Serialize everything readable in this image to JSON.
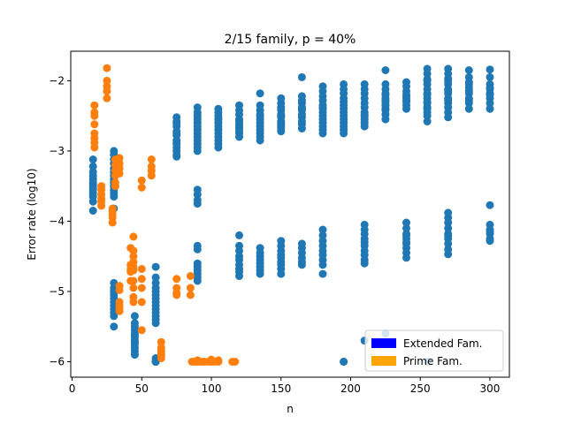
{
  "chart_data": {
    "type": "scatter",
    "title": "2/15 family, p = 40%",
    "xlabel": "n",
    "ylabel": "Error rate (log10)",
    "xlim": [
      -1,
      314
    ],
    "ylim": [
      -6.22,
      -1.58
    ],
    "xticks": [
      0,
      50,
      100,
      150,
      200,
      250,
      300
    ],
    "yticks": [
      -6,
      -5,
      -4,
      -3,
      -2
    ],
    "grid": false,
    "legend": {
      "placement": "lower-right",
      "entries": [
        {
          "label": "Extended Fam.",
          "color": "#0000ff"
        },
        {
          "label": "Prime Fam.",
          "color": "#ffa500"
        }
      ]
    },
    "series": [
      {
        "color": "#1f77b4",
        "x": [
          15,
          15,
          15,
          15,
          15,
          15,
          15,
          15,
          15,
          15,
          15,
          15,
          15,
          30,
          30,
          30,
          30,
          30,
          30,
          30,
          30,
          30,
          30,
          30,
          30,
          30,
          30,
          30,
          30,
          30,
          30,
          30,
          30,
          30,
          30,
          30,
          30,
          30,
          30,
          45,
          45,
          45,
          45,
          45,
          45,
          45,
          45,
          45,
          45,
          45,
          45,
          45,
          60,
          60,
          60,
          60,
          60,
          60,
          60,
          60,
          60,
          60,
          60,
          60,
          60,
          60,
          60,
          60,
          60,
          60,
          60,
          60,
          60,
          75,
          75,
          75,
          75,
          75,
          75,
          75,
          75,
          75,
          75,
          75,
          75,
          75,
          75,
          90,
          90,
          90,
          90,
          90,
          90,
          90,
          90,
          90,
          90,
          90,
          90,
          90,
          90,
          90,
          90,
          90,
          90,
          90,
          90,
          90,
          90,
          90,
          90,
          90,
          105,
          105,
          105,
          105,
          105,
          105,
          105,
          105,
          105,
          105,
          105,
          105,
          105,
          120,
          120,
          120,
          120,
          120,
          120,
          120,
          120,
          120,
          120,
          120,
          120,
          120,
          120,
          120,
          120,
          120,
          120,
          120,
          120,
          135,
          135,
          135,
          135,
          135,
          135,
          135,
          135,
          135,
          135,
          135,
          135,
          135,
          135,
          135,
          135,
          135,
          135,
          135,
          135,
          150,
          150,
          150,
          150,
          150,
          150,
          150,
          150,
          150,
          150,
          150,
          150,
          150,
          150,
          150,
          150,
          150,
          150,
          150,
          150,
          150,
          150,
          165,
          165,
          165,
          165,
          165,
          165,
          165,
          165,
          165,
          165,
          165,
          165,
          165,
          165,
          165,
          165,
          165,
          165,
          180,
          180,
          180,
          180,
          180,
          180,
          180,
          180,
          180,
          180,
          180,
          180,
          180,
          180,
          180,
          180,
          180,
          180,
          180,
          180,
          180,
          180,
          180,
          195,
          195,
          195,
          195,
          195,
          195,
          195,
          195,
          195,
          195,
          195,
          195,
          195,
          195,
          195,
          210,
          210,
          210,
          210,
          210,
          210,
          210,
          210,
          210,
          210,
          210,
          210,
          210,
          210,
          210,
          210,
          210,
          210,
          210,
          210,
          210,
          210,
          225,
          225,
          225,
          225,
          225,
          225,
          225,
          225,
          225,
          225,
          225,
          225,
          225,
          225,
          240,
          240,
          240,
          240,
          240,
          240,
          240,
          240,
          240,
          240,
          240,
          240,
          240,
          240,
          240,
          240,
          240,
          240,
          240,
          240,
          255,
          255,
          255,
          255,
          255,
          255,
          255,
          255,
          255,
          255,
          255,
          255,
          255,
          255,
          255,
          255,
          255,
          255,
          270,
          270,
          270,
          270,
          270,
          270,
          270,
          270,
          270,
          270,
          270,
          270,
          270,
          270,
          270,
          270,
          270,
          270,
          270,
          270,
          270,
          270,
          270,
          270,
          285,
          285,
          285,
          285,
          285,
          285,
          285,
          285,
          285,
          285,
          285,
          300,
          300,
          300,
          300,
          300,
          300,
          300,
          300,
          300,
          300,
          300,
          300,
          300,
          300,
          300,
          300,
          300,
          210,
          225,
          195
        ],
        "y": [
          -3.12,
          -3.22,
          -3.3,
          -3.35,
          -3.4,
          -3.45,
          -3.48,
          -3.52,
          -3.55,
          -3.6,
          -3.65,
          -3.72,
          -3.85,
          -3.0,
          -3.05,
          -3.12,
          -3.18,
          -3.25,
          -3.3,
          -3.35,
          -3.4,
          -3.45,
          -3.5,
          -3.55,
          -3.6,
          -3.65,
          -3.82,
          -4.88,
          -4.95,
          -5.0,
          -5.05,
          -5.1,
          -5.15,
          -5.2,
          -5.25,
          -5.3,
          -5.35,
          -5.5,
          -5.0,
          -5.35,
          -5.45,
          -5.5,
          -5.55,
          -5.6,
          -5.62,
          -5.65,
          -5.7,
          -5.72,
          -5.75,
          -5.8,
          -5.85,
          -5.9,
          -4.65,
          -4.8,
          -4.88,
          -4.95,
          -5.0,
          -5.05,
          -5.1,
          -5.15,
          -5.2,
          -5.25,
          -5.3,
          -5.35,
          -5.4,
          -5.45,
          -5.95,
          -5.98,
          -6.0,
          -6.0,
          -6.0,
          -6.0,
          -6.0,
          -2.52,
          -2.58,
          -2.65,
          -2.72,
          -2.78,
          -2.85,
          -2.9,
          -2.95,
          -3.0,
          -3.05,
          -3.08,
          -2.6,
          -2.75,
          -2.88,
          -2.38,
          -2.45,
          -2.5,
          -2.55,
          -2.6,
          -2.65,
          -2.7,
          -2.75,
          -2.8,
          -2.85,
          -2.9,
          -2.95,
          -3.0,
          -3.55,
          -3.62,
          -3.7,
          -3.75,
          -4.35,
          -4.4,
          -4.6,
          -4.65,
          -4.7,
          -4.75,
          -4.8,
          -4.85,
          -2.4,
          -2.45,
          -2.5,
          -2.55,
          -2.6,
          -2.65,
          -2.7,
          -2.75,
          -2.8,
          -2.85,
          -2.9,
          -2.95,
          -2.55,
          -2.35,
          -2.42,
          -2.48,
          -2.55,
          -2.62,
          -2.68,
          -2.75,
          -2.8,
          -2.58,
          -2.65,
          -2.72,
          -4.2,
          -4.35,
          -4.42,
          -4.5,
          -4.55,
          -4.62,
          -4.68,
          -4.72,
          -4.78,
          -2.18,
          -2.35,
          -2.42,
          -2.48,
          -2.55,
          -2.6,
          -2.65,
          -2.7,
          -2.75,
          -2.8,
          -2.85,
          -2.5,
          -4.38,
          -4.45,
          -4.5,
          -4.55,
          -4.6,
          -4.65,
          -4.7,
          -4.75,
          -2.25,
          -2.32,
          -2.38,
          -2.42,
          -2.48,
          -2.52,
          -2.58,
          -2.62,
          -2.68,
          -2.72,
          -2.5,
          -2.6,
          -2.65,
          -4.28,
          -4.35,
          -4.42,
          -4.48,
          -4.52,
          -4.58,
          -4.62,
          -4.68,
          -4.75,
          -1.95,
          -2.22,
          -2.28,
          -2.32,
          -2.38,
          -2.42,
          -2.48,
          -2.52,
          -2.58,
          -2.62,
          -2.68,
          -2.4,
          -4.32,
          -4.38,
          -4.45,
          -4.52,
          -4.58,
          -4.62,
          -2.08,
          -2.15,
          -2.22,
          -2.28,
          -2.35,
          -2.4,
          -2.45,
          -2.5,
          -2.55,
          -2.6,
          -2.65,
          -2.7,
          -2.75,
          -2.38,
          -4.12,
          -4.2,
          -4.28,
          -4.35,
          -4.42,
          -4.48,
          -4.55,
          -4.62,
          -4.75,
          -2.05,
          -2.12,
          -2.18,
          -2.25,
          -2.3,
          -2.35,
          -2.4,
          -2.45,
          -2.5,
          -2.55,
          -2.6,
          -2.65,
          -2.7,
          -2.75,
          -6.0,
          -2.05,
          -2.12,
          -2.18,
          -2.25,
          -2.32,
          -2.38,
          -2.45,
          -2.5,
          -2.55,
          -2.6,
          -2.65,
          -2.48,
          -4.05,
          -4.12,
          -4.18,
          -4.25,
          -4.3,
          -4.35,
          -4.42,
          -4.48,
          -4.55,
          -4.6,
          -1.85,
          -2.05,
          -2.12,
          -2.18,
          -2.25,
          -2.3,
          -2.35,
          -2.42,
          -2.48,
          -2.55,
          -2.2,
          -2.28,
          -2.4,
          -2.35,
          -2.02,
          -2.08,
          -2.15,
          -2.2,
          -2.25,
          -2.3,
          -2.35,
          -2.4,
          -2.22,
          -2.28,
          -4.02,
          -4.1,
          -4.18,
          -4.25,
          -4.32,
          -4.38,
          -4.45,
          -4.52,
          -4.3,
          -4.2,
          -1.83,
          -1.9,
          -1.98,
          -2.05,
          -2.12,
          -2.18,
          -2.25,
          -2.32,
          -2.38,
          -2.45,
          -2.5,
          -2.58,
          -2.2,
          -2.3,
          -2.4,
          -2.0,
          -6.0,
          -6.0,
          -1.83,
          -1.9,
          -1.97,
          -2.05,
          -2.12,
          -2.18,
          -2.25,
          -2.32,
          -2.38,
          -2.45,
          -2.52,
          -2.0,
          -2.15,
          -2.28,
          -3.88,
          -3.95,
          -4.02,
          -4.1,
          -4.18,
          -4.25,
          -4.32,
          -4.4,
          -4.47,
          -4.2,
          -1.85,
          -1.95,
          -2.02,
          -2.1,
          -2.18,
          -2.25,
          -2.32,
          -2.4,
          -2.15,
          -2.05,
          -2.28,
          -1.84,
          -1.95,
          -2.05,
          -2.12,
          -2.18,
          -2.25,
          -2.32,
          -2.4,
          -2.1,
          -2.2,
          -3.77,
          -4.05,
          -4.12,
          -4.18,
          -4.25,
          -4.28,
          -4.15,
          -5.7,
          -5.6,
          -6.0
        ]
      },
      {
        "color": "#ff7f0e",
        "x": [
          16,
          16,
          16,
          16,
          16,
          16,
          16,
          16,
          21,
          21,
          21,
          21,
          21,
          21,
          25,
          25,
          25,
          25,
          25,
          29,
          29,
          29,
          29,
          29,
          31,
          31,
          31,
          31,
          31,
          31,
          34,
          34,
          34,
          34,
          34,
          34,
          34,
          34,
          34,
          34,
          42,
          42,
          42,
          42,
          42,
          44,
          44,
          44,
          44,
          44,
          44,
          44,
          44,
          44,
          44,
          50,
          50,
          50,
          50,
          50,
          50,
          50,
          57,
          57,
          57,
          57,
          64,
          64,
          64,
          64,
          64,
          75,
          75,
          75,
          75,
          85,
          85,
          85,
          86,
          88,
          90,
          92,
          94,
          98,
          100,
          102,
          105,
          115,
          117,
          90,
          95,
          100,
          105
        ],
        "y": [
          -2.35,
          -2.45,
          -2.62,
          -2.75,
          -2.82,
          -2.88,
          -2.95,
          -2.5,
          -3.5,
          -3.55,
          -3.62,
          -3.68,
          -3.72,
          -3.78,
          -1.82,
          -2.08,
          -2.15,
          -2.25,
          -2.0,
          -3.82,
          -3.9,
          -3.95,
          -4.02,
          -3.85,
          -3.12,
          -3.2,
          -3.28,
          -3.45,
          -3.5,
          -3.35,
          -3.1,
          -3.18,
          -3.25,
          -3.32,
          -4.92,
          -4.98,
          -5.15,
          -5.2,
          -5.25,
          -5.28,
          -4.38,
          -4.62,
          -4.68,
          -4.72,
          -4.85,
          -4.22,
          -4.42,
          -4.5,
          -4.58,
          -4.65,
          -4.7,
          -4.85,
          -4.95,
          -5.08,
          -5.15,
          -3.42,
          -3.52,
          -4.68,
          -4.82,
          -4.95,
          -5.15,
          -5.55,
          -3.12,
          -3.22,
          -3.28,
          -3.35,
          -5.72,
          -5.8,
          -5.85,
          -5.9,
          -5.95,
          -4.82,
          -4.95,
          -5.02,
          -5.05,
          -4.78,
          -4.95,
          -5.05,
          -6.0,
          -6.0,
          -6.0,
          -6.0,
          -6.0,
          -6.0,
          -6.0,
          -6.0,
          -6.0,
          -6.0,
          -6.0,
          -5.98,
          -6.0,
          -5.97,
          -5.98
        ]
      }
    ]
  }
}
